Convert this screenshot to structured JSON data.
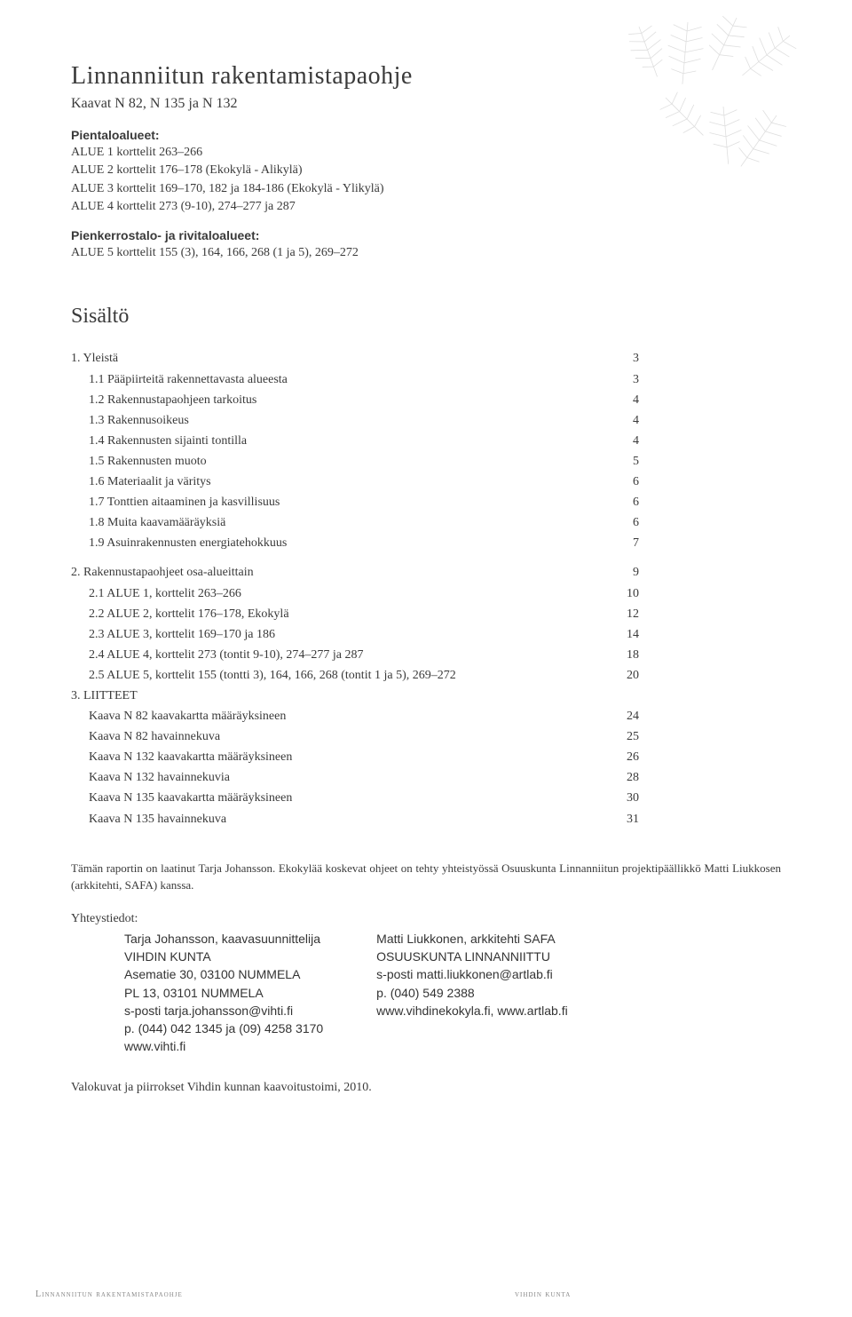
{
  "title": "Linnanniitun rakentamistapaohje",
  "subtitle": "Kaavat N 82, N 135 ja N 132",
  "areas1_label": "Pientaloalueet:",
  "areas1": [
    "ALUE 1 korttelit 263–266",
    "ALUE 2 korttelit 176–178 (Ekokylä - Alikylä)",
    "ALUE 3 korttelit 169–170, 182 ja 184-186 (Ekokylä - Ylikylä)",
    "ALUE 4 korttelit 273 (9-10), 274–277 ja 287"
  ],
  "areas2_label": "Pienkerrostalo- ja rivitaloalueet:",
  "areas2": [
    "ALUE 5 korttelit 155 (3), 164, 166, 268 (1 ja 5), 269–272"
  ],
  "toc_heading": "Sisältö",
  "toc": [
    {
      "t": "1. Yleistä",
      "p": "3",
      "indent": false
    },
    {
      "t": "1.1 Pääpiirteitä rakennettavasta alueesta",
      "p": "3",
      "indent": true
    },
    {
      "t": "1.2 Rakennustapaohjeen tarkoitus",
      "p": "4",
      "indent": true
    },
    {
      "t": "1.3 Rakennusoikeus",
      "p": "4",
      "indent": true
    },
    {
      "t": "1.4 Rakennusten sijainti tontilla",
      "p": "4",
      "indent": true
    },
    {
      "t": "1.5 Rakennusten muoto",
      "p": "5",
      "indent": true
    },
    {
      "t": "1.6 Materiaalit ja väritys",
      "p": "6",
      "indent": true
    },
    {
      "t": "1.7 Tonttien aitaaminen ja kasvillisuus",
      "p": "6",
      "indent": true
    },
    {
      "t": "1.8 Muita kaavamääräyksiä",
      "p": "6",
      "indent": true
    },
    {
      "t": "1.9 Asuinrakennusten energiatehokkuus",
      "p": "7",
      "indent": true
    },
    {
      "gap": true
    },
    {
      "t": "2. Rakennustapaohjeet osa-alueittain",
      "p": "9",
      "indent": false
    },
    {
      "t": "2.1 ALUE 1, korttelit 263–266",
      "p": "10",
      "indent": true
    },
    {
      "t": "2.2 ALUE 2, korttelit 176–178, Ekokylä",
      "p": "12",
      "indent": true
    },
    {
      "t": "2.3 ALUE 3, korttelit 169–170 ja 186",
      "p": "14",
      "indent": true
    },
    {
      "t": "2.4 ALUE 4, korttelit 273 (tontit 9-10), 274–277 ja 287",
      "p": "18",
      "indent": true
    },
    {
      "t": "2.5 ALUE 5, korttelit 155 (tontti 3), 164, 166, 268 (tontit 1 ja 5), 269–272",
      "p": "20",
      "indent": true
    },
    {
      "t": "3. LIITTEET",
      "p": "",
      "indent": false
    },
    {
      "t": "Kaava N 82 kaavakartta määräyksineen",
      "p": "24",
      "indent": true
    },
    {
      "t": "Kaava N 82 havainnekuva",
      "p": "25",
      "indent": true
    },
    {
      "t": "Kaava N 132 kaavakartta määräyksineen",
      "p": "26",
      "indent": true
    },
    {
      "t": "Kaava N 132 havainnekuvia",
      "p": "28",
      "indent": true
    },
    {
      "t": "Kaava N 135 kaavakartta määräyksineen",
      "p": "30",
      "indent": true
    },
    {
      "t": "Kaava N 135 havainnekuva",
      "p": "31",
      "indent": true
    }
  ],
  "credits": "Tämän raportin on laatinut Tarja Johansson. Ekokylää koskevat ohjeet on tehty yhteistyössä Osuuskunta Linnanniitun projektipäällikkö Matti Liukkosen (arkkitehti, SAFA) kanssa.",
  "contacts_label": "Yhteystiedot:",
  "contact_left": {
    "name": "Tarja Johansson, kaavasuunnittelija",
    "org": "VIHDIN KUNTA",
    "addr1": "Asematie 30, 03100 NUMMELA",
    "addr2": "PL 13, 03101 NUMMELA",
    "email": "s-posti tarja.johansson@vihti.fi",
    "phone": "p. (044) 042 1345 ja (09) 4258 3170",
    "web": "www.vihti.fi"
  },
  "contact_right": {
    "name": "Matti Liukkonen, arkkitehti SAFA",
    "org": "OSUUSKUNTA LINNANNIITTU",
    "email": "s-posti matti.liukkonen@artlab.fi",
    "phone": "p. (040) 549 2388",
    "web": "www.vihdinekokyla.fi, www.artlab.fi"
  },
  "photo_credit": "Valokuvat ja piirrokset Vihdin kunnan kaavoitustoimi, 2010.",
  "footer_left": "Linnanniitun rakentamistapaohje",
  "footer_right": "vihdin kunta",
  "colors": {
    "text": "#3a3a3a",
    "muted": "#888888",
    "background": "#ffffff",
    "fern": "#aaaaaa"
  }
}
